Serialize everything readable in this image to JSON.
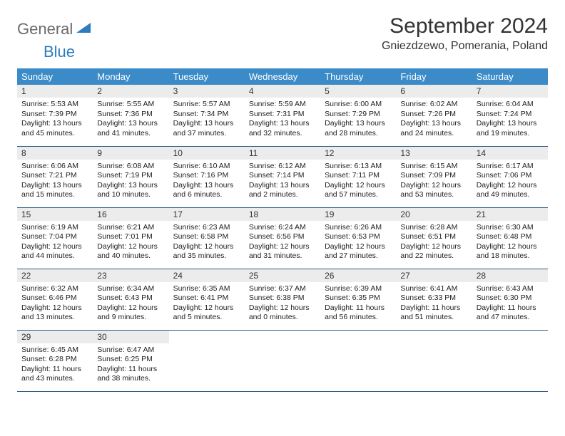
{
  "logo": {
    "text1": "General",
    "text2": "Blue"
  },
  "title": "September 2024",
  "location": "Gniezdzewo, Pomerania, Poland",
  "colors": {
    "header_bg": "#3b8bc8",
    "header_text": "#ffffff",
    "daynum_bg": "#ececec",
    "cell_border": "#2b5a85",
    "logo_gray": "#6b6b6b",
    "logo_blue": "#2f7bbf",
    "page_bg": "#ffffff"
  },
  "weekdays": [
    "Sunday",
    "Monday",
    "Tuesday",
    "Wednesday",
    "Thursday",
    "Friday",
    "Saturday"
  ],
  "weeks": [
    [
      {
        "d": "1",
        "sr": "5:53 AM",
        "ss": "7:39 PM",
        "dl": "13 hours and 45 minutes."
      },
      {
        "d": "2",
        "sr": "5:55 AM",
        "ss": "7:36 PM",
        "dl": "13 hours and 41 minutes."
      },
      {
        "d": "3",
        "sr": "5:57 AM",
        "ss": "7:34 PM",
        "dl": "13 hours and 37 minutes."
      },
      {
        "d": "4",
        "sr": "5:59 AM",
        "ss": "7:31 PM",
        "dl": "13 hours and 32 minutes."
      },
      {
        "d": "5",
        "sr": "6:00 AM",
        "ss": "7:29 PM",
        "dl": "13 hours and 28 minutes."
      },
      {
        "d": "6",
        "sr": "6:02 AM",
        "ss": "7:26 PM",
        "dl": "13 hours and 24 minutes."
      },
      {
        "d": "7",
        "sr": "6:04 AM",
        "ss": "7:24 PM",
        "dl": "13 hours and 19 minutes."
      }
    ],
    [
      {
        "d": "8",
        "sr": "6:06 AM",
        "ss": "7:21 PM",
        "dl": "13 hours and 15 minutes."
      },
      {
        "d": "9",
        "sr": "6:08 AM",
        "ss": "7:19 PM",
        "dl": "13 hours and 10 minutes."
      },
      {
        "d": "10",
        "sr": "6:10 AM",
        "ss": "7:16 PM",
        "dl": "13 hours and 6 minutes."
      },
      {
        "d": "11",
        "sr": "6:12 AM",
        "ss": "7:14 PM",
        "dl": "13 hours and 2 minutes."
      },
      {
        "d": "12",
        "sr": "6:13 AM",
        "ss": "7:11 PM",
        "dl": "12 hours and 57 minutes."
      },
      {
        "d": "13",
        "sr": "6:15 AM",
        "ss": "7:09 PM",
        "dl": "12 hours and 53 minutes."
      },
      {
        "d": "14",
        "sr": "6:17 AM",
        "ss": "7:06 PM",
        "dl": "12 hours and 49 minutes."
      }
    ],
    [
      {
        "d": "15",
        "sr": "6:19 AM",
        "ss": "7:04 PM",
        "dl": "12 hours and 44 minutes."
      },
      {
        "d": "16",
        "sr": "6:21 AM",
        "ss": "7:01 PM",
        "dl": "12 hours and 40 minutes."
      },
      {
        "d": "17",
        "sr": "6:23 AM",
        "ss": "6:58 PM",
        "dl": "12 hours and 35 minutes."
      },
      {
        "d": "18",
        "sr": "6:24 AM",
        "ss": "6:56 PM",
        "dl": "12 hours and 31 minutes."
      },
      {
        "d": "19",
        "sr": "6:26 AM",
        "ss": "6:53 PM",
        "dl": "12 hours and 27 minutes."
      },
      {
        "d": "20",
        "sr": "6:28 AM",
        "ss": "6:51 PM",
        "dl": "12 hours and 22 minutes."
      },
      {
        "d": "21",
        "sr": "6:30 AM",
        "ss": "6:48 PM",
        "dl": "12 hours and 18 minutes."
      }
    ],
    [
      {
        "d": "22",
        "sr": "6:32 AM",
        "ss": "6:46 PM",
        "dl": "12 hours and 13 minutes."
      },
      {
        "d": "23",
        "sr": "6:34 AM",
        "ss": "6:43 PM",
        "dl": "12 hours and 9 minutes."
      },
      {
        "d": "24",
        "sr": "6:35 AM",
        "ss": "6:41 PM",
        "dl": "12 hours and 5 minutes."
      },
      {
        "d": "25",
        "sr": "6:37 AM",
        "ss": "6:38 PM",
        "dl": "12 hours and 0 minutes."
      },
      {
        "d": "26",
        "sr": "6:39 AM",
        "ss": "6:35 PM",
        "dl": "11 hours and 56 minutes."
      },
      {
        "d": "27",
        "sr": "6:41 AM",
        "ss": "6:33 PM",
        "dl": "11 hours and 51 minutes."
      },
      {
        "d": "28",
        "sr": "6:43 AM",
        "ss": "6:30 PM",
        "dl": "11 hours and 47 minutes."
      }
    ],
    [
      {
        "d": "29",
        "sr": "6:45 AM",
        "ss": "6:28 PM",
        "dl": "11 hours and 43 minutes."
      },
      {
        "d": "30",
        "sr": "6:47 AM",
        "ss": "6:25 PM",
        "dl": "11 hours and 38 minutes."
      },
      null,
      null,
      null,
      null,
      null
    ]
  ],
  "labels": {
    "sunrise": "Sunrise:",
    "sunset": "Sunset:",
    "daylight": "Daylight:"
  }
}
